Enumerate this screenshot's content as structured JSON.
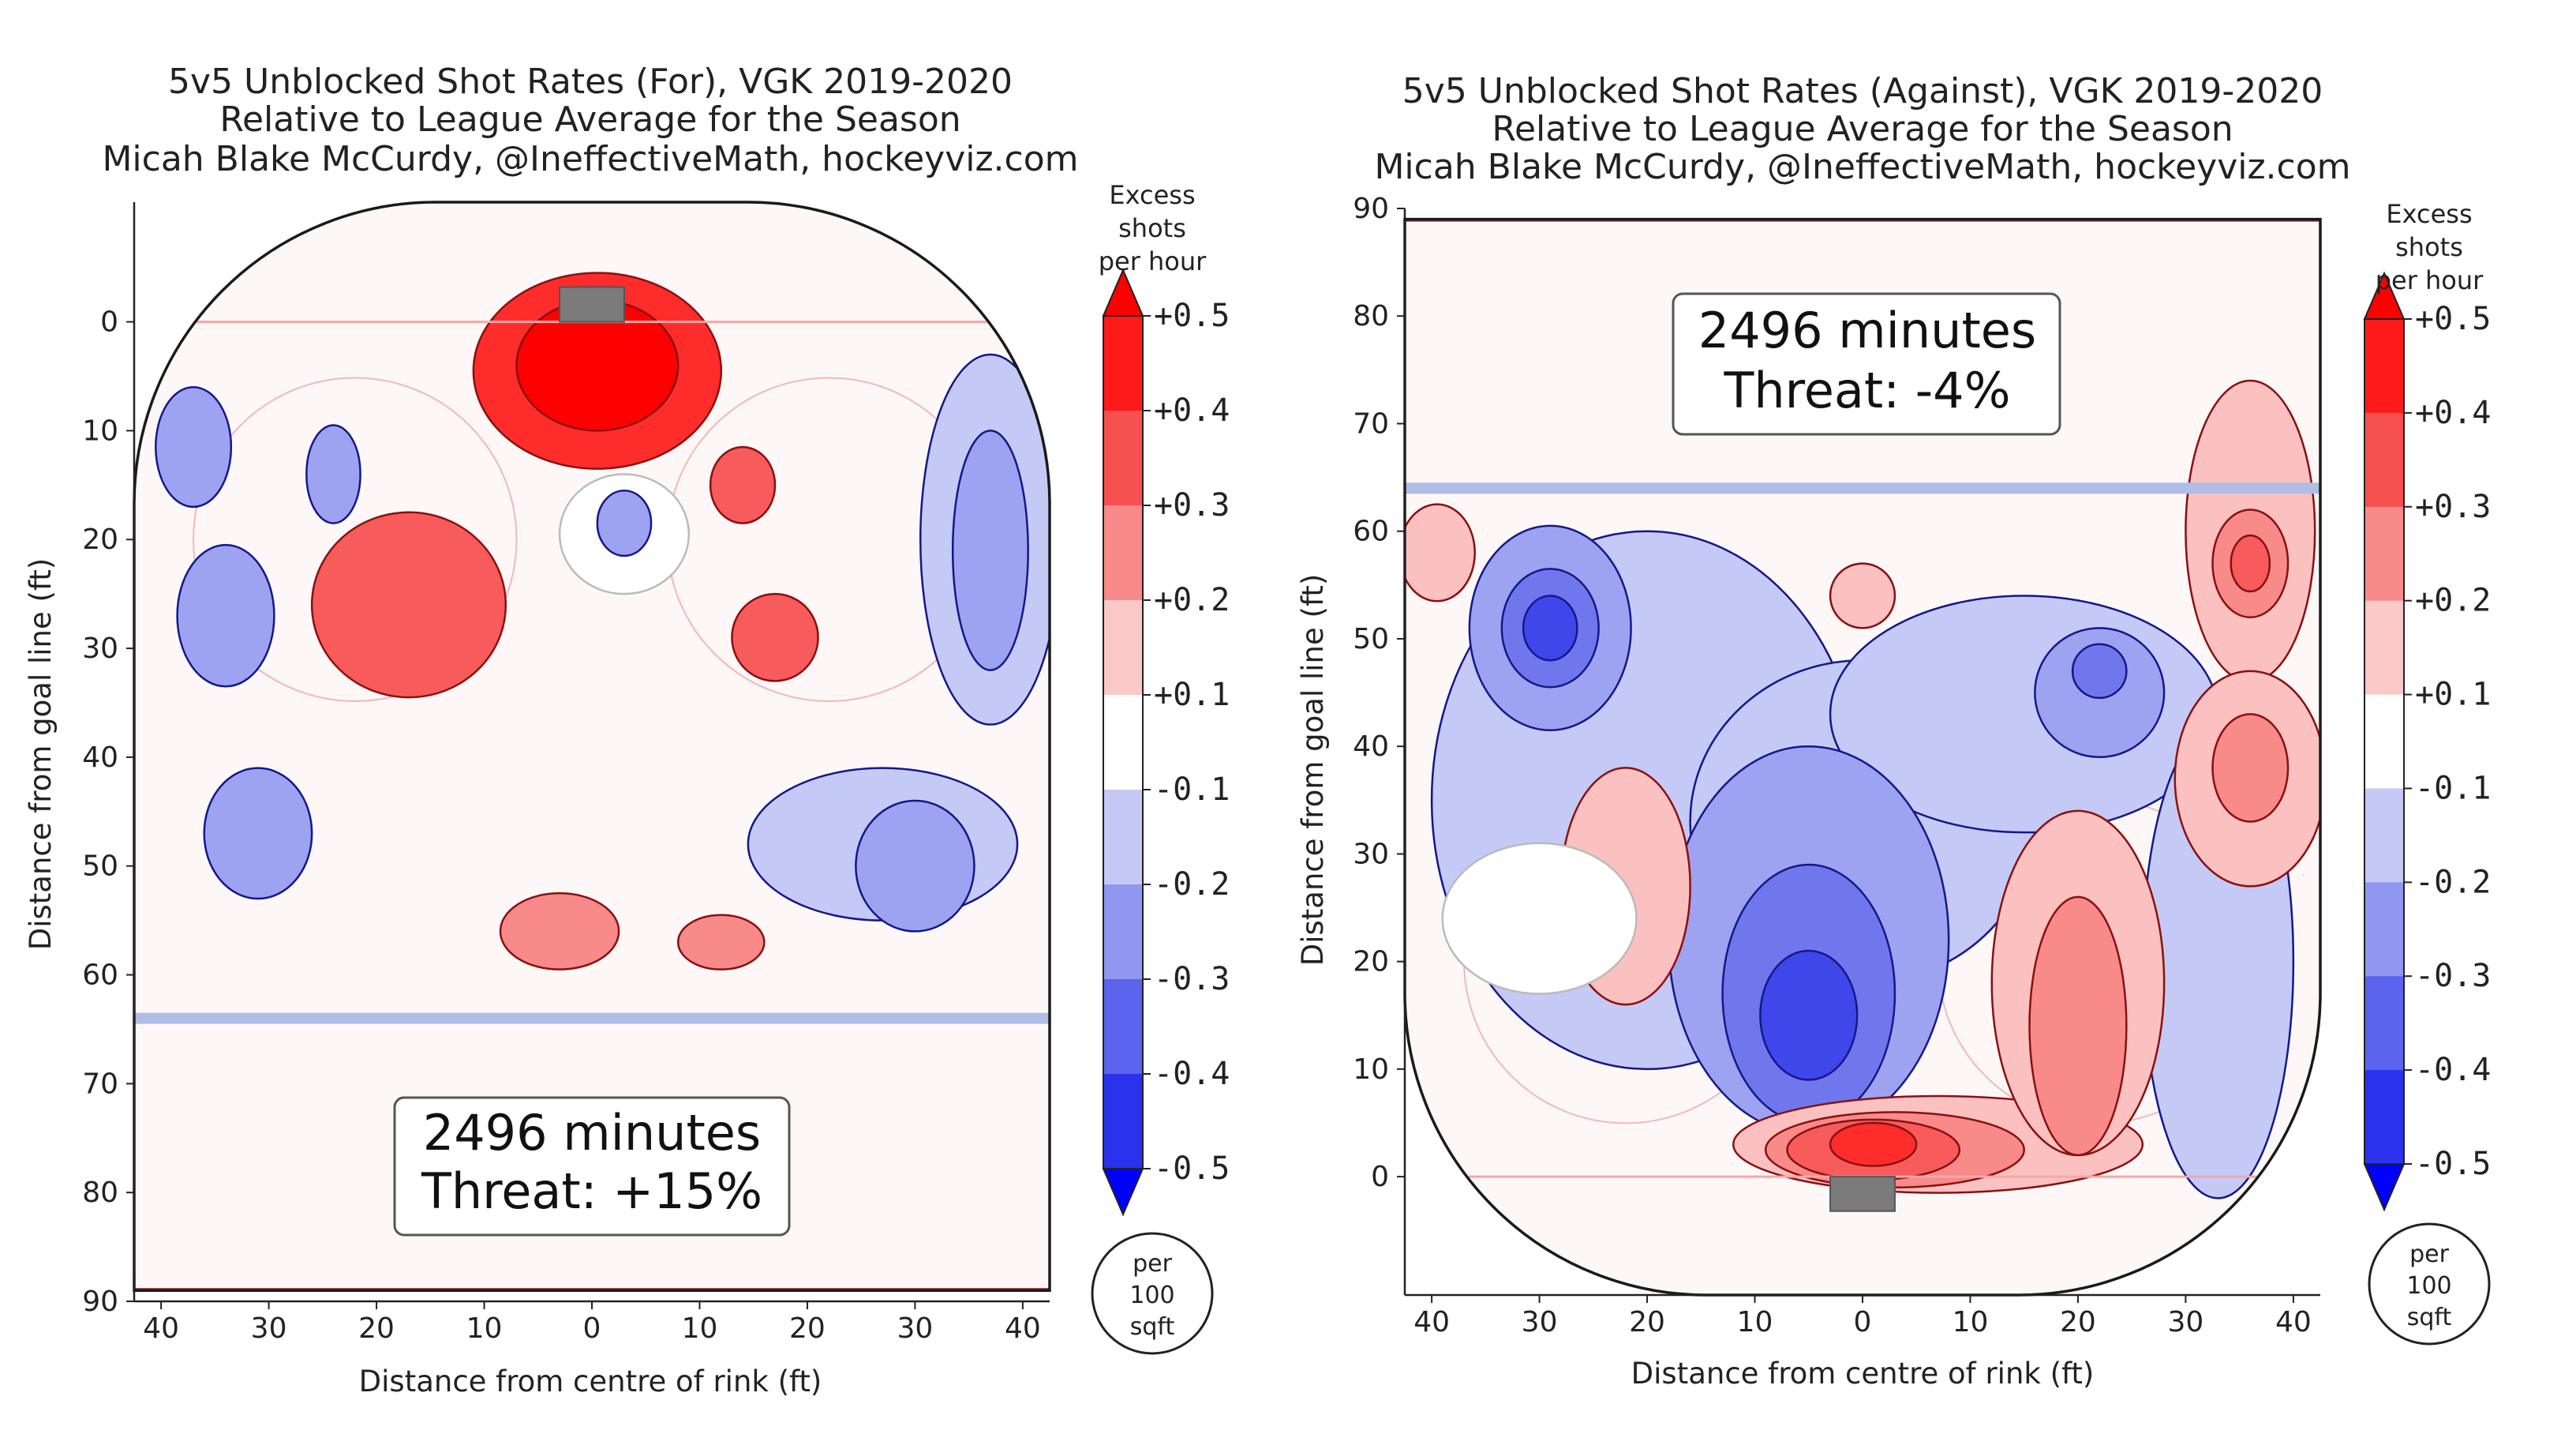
{
  "chart_data": [
    {
      "type": "heatmap",
      "title_lines": [
        "5v5 Unblocked Shot Rates (For), VGK 2019-2020",
        "Relative to League Average for the Season",
        "Micah Blake McCurdy, @IneffectiveMath, hockeyviz.com"
      ],
      "xlabel": "Distance from centre of rink (ft)",
      "ylabel": "Distance from goal line (ft)",
      "x_ticks": [
        "40",
        "30",
        "20",
        "10",
        "0",
        "10",
        "20",
        "30",
        "40"
      ],
      "y_ticks": [
        "0",
        "10",
        "20",
        "30",
        "40",
        "50",
        "60",
        "70",
        "80",
        "90"
      ],
      "xlim": [
        -42.5,
        42.5
      ],
      "ylim": [
        -11,
        90
      ],
      "y_inverted": true,
      "goal_at_top": true,
      "annotation_lines": [
        "2496 minutes",
        "Threat: +15%"
      ],
      "colorbar": {
        "title_lines": [
          "Excess",
          "shots",
          "per hour"
        ],
        "ticks": [
          "+0.5",
          "+0.4",
          "+0.3",
          "+0.2",
          "+0.1",
          "-0.1",
          "-0.2",
          "-0.3",
          "-0.4",
          "-0.5"
        ],
        "unit_lines": [
          "per",
          "100",
          "sqft"
        ]
      },
      "regions": [
        {
          "x": 0.5,
          "y": 4.5,
          "rx": 11.5,
          "ry": 9,
          "level": 0.4
        },
        {
          "x": 0.5,
          "y": 4,
          "rx": 7.5,
          "ry": 6,
          "level": 0.5
        },
        {
          "x": -17,
          "y": 26,
          "rx": 9,
          "ry": 8.5,
          "level": 0.3
        },
        {
          "x": 14,
          "y": 15,
          "rx": 3,
          "ry": 3.5,
          "level": 0.3
        },
        {
          "x": 17,
          "y": 29,
          "rx": 4,
          "ry": 4,
          "level": 0.3
        },
        {
          "x": -3,
          "y": 56,
          "rx": 5.5,
          "ry": 3.5,
          "level": 0.2
        },
        {
          "x": 12,
          "y": 57,
          "rx": 4,
          "ry": 2.5,
          "level": 0.2
        },
        {
          "x": -24,
          "y": 14,
          "rx": 2.5,
          "ry": 4.5,
          "level": -0.2
        },
        {
          "x": -37,
          "y": 11.5,
          "rx": 3.5,
          "ry": 5.5,
          "level": -0.2
        },
        {
          "x": -34,
          "y": 27,
          "rx": 4.5,
          "ry": 6.5,
          "level": -0.2
        },
        {
          "x": -31,
          "y": 47,
          "rx": 5,
          "ry": 6,
          "level": -0.2
        },
        {
          "x": 37,
          "y": 20,
          "rx": 6.5,
          "ry": 17,
          "level": -0.1
        },
        {
          "x": 37,
          "y": 21,
          "rx": 3.5,
          "ry": 11,
          "level": -0.2
        },
        {
          "x": 27,
          "y": 48,
          "rx": 12.5,
          "ry": 7,
          "level": -0.1
        },
        {
          "x": 30,
          "y": 50,
          "rx": 5.5,
          "ry": 6,
          "level": -0.2
        },
        {
          "x": 3,
          "y": 19.5,
          "rx": 6,
          "ry": 5.5,
          "level": 0
        },
        {
          "x": 3,
          "y": 18.5,
          "rx": 2.5,
          "ry": 3,
          "level": -0.2
        }
      ]
    },
    {
      "type": "heatmap",
      "title_lines": [
        "5v5 Unblocked Shot Rates (Against), VGK 2019-2020",
        "Relative to League Average for the Season",
        "Micah Blake McCurdy, @IneffectiveMath, hockeyviz.com"
      ],
      "xlabel": "Distance from centre of rink (ft)",
      "ylabel": "Distance from goal line (ft)",
      "x_ticks": [
        "40",
        "30",
        "20",
        "10",
        "0",
        "10",
        "20",
        "30",
        "40"
      ],
      "y_ticks": [
        "0",
        "10",
        "20",
        "30",
        "40",
        "50",
        "60",
        "70",
        "80",
        "90"
      ],
      "xlim": [
        -42.5,
        42.5
      ],
      "ylim": [
        -11,
        90
      ],
      "y_inverted": false,
      "goal_at_top": false,
      "annotation_lines": [
        "2496 minutes",
        "Threat: -4%"
      ],
      "colorbar": {
        "title_lines": [
          "Excess",
          "shots",
          "per hour"
        ],
        "ticks": [
          "+0.5",
          "+0.4",
          "+0.3",
          "+0.2",
          "+0.1",
          "-0.1",
          "-0.2",
          "-0.3",
          "-0.4",
          "-0.5"
        ],
        "unit_lines": [
          "per",
          "100",
          "sqft"
        ]
      },
      "regions": [
        {
          "x": -20,
          "y": 35,
          "rx": 20,
          "ry": 25,
          "level": -0.1
        },
        {
          "x": 0,
          "y": 33,
          "rx": 16,
          "ry": 15,
          "level": -0.1
        },
        {
          "x": 15,
          "y": 43,
          "rx": 18,
          "ry": 11,
          "level": -0.1
        },
        {
          "x": 33,
          "y": 20,
          "rx": 7,
          "ry": 22,
          "level": -0.1
        },
        {
          "x": -29,
          "y": 51,
          "rx": 7.5,
          "ry": 9.5,
          "level": -0.2
        },
        {
          "x": -29,
          "y": 51,
          "rx": 4.5,
          "ry": 5.5,
          "level": -0.3
        },
        {
          "x": -29,
          "y": 51,
          "rx": 2.5,
          "ry": 3,
          "level": -0.4
        },
        {
          "x": -5,
          "y": 22,
          "rx": 13,
          "ry": 18,
          "level": -0.2
        },
        {
          "x": -5,
          "y": 17,
          "rx": 8,
          "ry": 12,
          "level": -0.3
        },
        {
          "x": -5,
          "y": 15,
          "rx": 4.5,
          "ry": 6,
          "level": -0.4
        },
        {
          "x": 22,
          "y": 45,
          "rx": 6,
          "ry": 6,
          "level": -0.2
        },
        {
          "x": 22,
          "y": 47,
          "rx": 2.5,
          "ry": 2.5,
          "level": -0.3
        },
        {
          "x": -22,
          "y": 27,
          "rx": 6,
          "ry": 11,
          "level": 0.1
        },
        {
          "x": -30,
          "y": 24,
          "rx": 9,
          "ry": 7,
          "level": 0
        },
        {
          "x": 0,
          "y": 54,
          "rx": 3,
          "ry": 3,
          "level": 0.1
        },
        {
          "x": -39.5,
          "y": 58,
          "rx": 3.5,
          "ry": 4.5,
          "level": 0.1
        },
        {
          "x": 36,
          "y": 60,
          "rx": 6,
          "ry": 14,
          "level": 0.1
        },
        {
          "x": 36,
          "y": 57,
          "rx": 3.5,
          "ry": 5,
          "level": 0.2
        },
        {
          "x": 36,
          "y": 57,
          "rx": 1.8,
          "ry": 2.6,
          "level": 0.3
        },
        {
          "x": 36,
          "y": 37,
          "rx": 7,
          "ry": 10,
          "level": 0.1
        },
        {
          "x": 36,
          "y": 38,
          "rx": 3.5,
          "ry": 5,
          "level": 0.2
        },
        {
          "x": 7,
          "y": 3,
          "rx": 19,
          "ry": 4.5,
          "level": 0.1
        },
        {
          "x": 20,
          "y": 18,
          "rx": 8,
          "ry": 16,
          "level": 0.1
        },
        {
          "x": 3,
          "y": 2.5,
          "rx": 12,
          "ry": 3.5,
          "level": 0.2
        },
        {
          "x": 20,
          "y": 14,
          "rx": 4.5,
          "ry": 12,
          "level": 0.2
        },
        {
          "x": 1,
          "y": 2.5,
          "rx": 8,
          "ry": 2.8,
          "level": 0.3
        },
        {
          "x": 1,
          "y": 3,
          "rx": 4,
          "ry": 2,
          "level": 0.4
        }
      ]
    }
  ]
}
